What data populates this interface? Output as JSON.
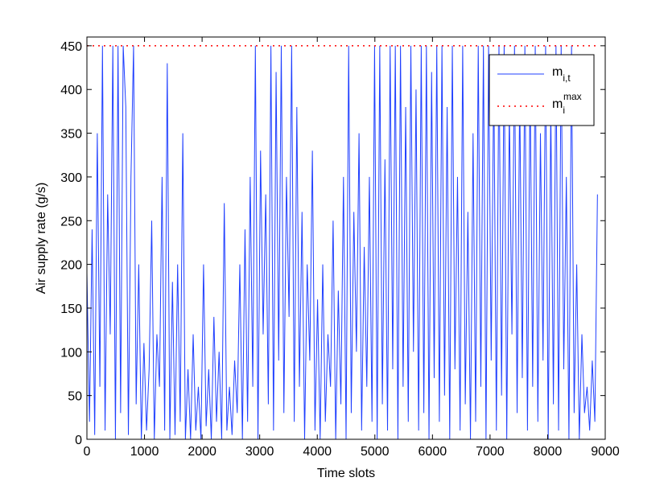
{
  "chart_data": {
    "type": "line",
    "xlabel": "Time slots",
    "ylabel": "Air supply rate (g/s)",
    "xlim": [
      0,
      9000
    ],
    "ylim": [
      0,
      460
    ],
    "xticks": [
      0,
      1000,
      2000,
      3000,
      4000,
      5000,
      6000,
      7000,
      8000,
      9000
    ],
    "yticks": [
      0,
      50,
      100,
      150,
      200,
      250,
      300,
      350,
      400,
      450
    ],
    "legend": "upper right",
    "series": [
      {
        "name": "m",
        "name_sub": "i,t",
        "color": "#1f3fff",
        "style": "solid",
        "x": [
          0,
          45,
          90,
          135,
          180,
          225,
          270,
          315,
          360,
          405,
          450,
          495,
          540,
          585,
          630,
          675,
          720,
          765,
          810,
          855,
          900,
          945,
          990,
          1035,
          1080,
          1125,
          1170,
          1215,
          1260,
          1305,
          1350,
          1395,
          1440,
          1485,
          1530,
          1575,
          1620,
          1665,
          1710,
          1755,
          1800,
          1845,
          1890,
          1935,
          1980,
          2025,
          2070,
          2115,
          2160,
          2205,
          2250,
          2295,
          2340,
          2385,
          2430,
          2475,
          2520,
          2565,
          2610,
          2655,
          2700,
          2745,
          2790,
          2835,
          2880,
          2925,
          2970,
          3015,
          3060,
          3105,
          3150,
          3195,
          3240,
          3285,
          3330,
          3375,
          3420,
          3465,
          3510,
          3555,
          3600,
          3645,
          3690,
          3735,
          3780,
          3825,
          3870,
          3915,
          3960,
          4005,
          4050,
          4095,
          4140,
          4185,
          4230,
          4275,
          4320,
          4365,
          4410,
          4455,
          4500,
          4545,
          4590,
          4635,
          4680,
          4725,
          4770,
          4815,
          4860,
          4905,
          4950,
          4995,
          5040,
          5085,
          5130,
          5175,
          5220,
          5265,
          5310,
          5355,
          5400,
          5445,
          5490,
          5535,
          5580,
          5625,
          5670,
          5715,
          5760,
          5805,
          5850,
          5895,
          5940,
          5985,
          6030,
          6075,
          6120,
          6165,
          6210,
          6255,
          6300,
          6345,
          6390,
          6435,
          6480,
          6525,
          6570,
          6615,
          6660,
          6705,
          6750,
          6795,
          6840,
          6885,
          6930,
          6975,
          7020,
          7065,
          7110,
          7155,
          7200,
          7245,
          7290,
          7335,
          7380,
          7425,
          7470,
          7515,
          7560,
          7605,
          7650,
          7695,
          7740,
          7785,
          7830,
          7875,
          7920,
          7965,
          8010,
          8055,
          8100,
          8145,
          8190,
          8235,
          8280,
          8325,
          8370,
          8415,
          8460,
          8505,
          8550,
          8595,
          8640,
          8685,
          8730,
          8775,
          8820,
          8865
        ],
        "values": [
          190,
          20,
          240,
          5,
          350,
          60,
          450,
          10,
          280,
          120,
          450,
          0,
          450,
          30,
          450,
          380,
          5,
          300,
          450,
          40,
          200,
          0,
          110,
          10,
          80,
          250,
          0,
          120,
          60,
          300,
          10,
          430,
          0,
          180,
          5,
          200,
          20,
          350,
          0,
          80,
          0,
          120,
          10,
          60,
          0,
          200,
          15,
          80,
          0,
          140,
          20,
          100,
          0,
          270,
          10,
          60,
          5,
          90,
          30,
          200,
          0,
          240,
          20,
          300,
          60,
          450,
          0,
          330,
          120,
          280,
          40,
          450,
          10,
          420,
          90,
          450,
          30,
          300,
          140,
          450,
          20,
          380,
          60,
          260,
          0,
          200,
          90,
          330,
          10,
          160,
          0,
          200,
          20,
          120,
          60,
          250,
          0,
          170,
          40,
          300,
          0,
          450,
          30,
          260,
          100,
          350,
          10,
          220,
          60,
          300,
          20,
          450,
          0,
          450,
          40,
          320,
          10,
          450,
          80,
          450,
          0,
          450,
          60,
          380,
          20,
          450,
          100,
          400,
          10,
          450,
          30,
          450,
          0,
          420,
          70,
          450,
          20,
          450,
          50,
          380,
          0,
          450,
          80,
          300,
          10,
          450,
          40,
          260,
          0,
          350,
          20,
          450,
          60,
          450,
          0,
          450,
          90,
          420,
          10,
          450,
          50,
          450,
          0,
          380,
          120,
          450,
          30,
          400,
          70,
          450,
          10,
          420,
          60,
          450,
          20,
          350,
          90,
          450,
          0,
          380,
          40,
          450,
          10,
          450,
          80,
          300,
          0,
          450,
          30,
          200,
          0,
          120,
          30,
          60,
          10,
          90,
          20,
          280
        ]
      },
      {
        "name": "m",
        "name_sub": "i",
        "name_sup": "max",
        "color": "#ff0000",
        "style": "dotted",
        "x": [
          0,
          8865
        ],
        "values": [
          450,
          450
        ]
      }
    ]
  }
}
